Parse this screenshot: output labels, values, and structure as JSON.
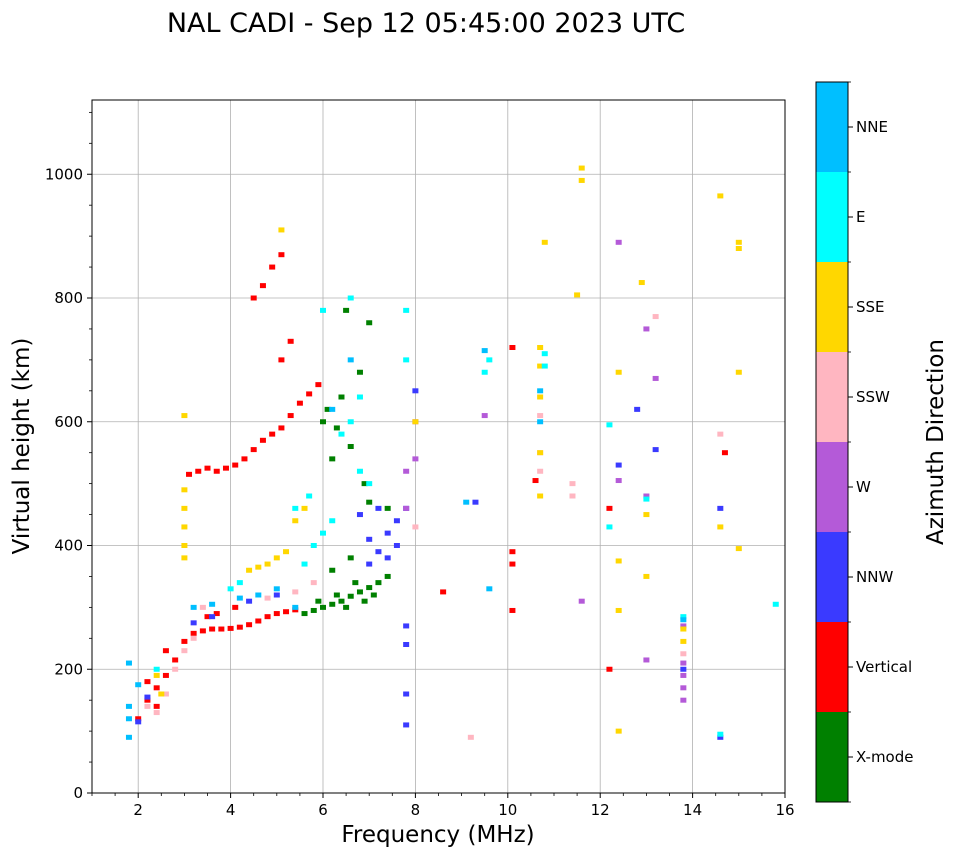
{
  "chart_data": {
    "type": "scatter",
    "title": "NAL CADI - Sep 12 05:45:00 2023 UTC",
    "xlabel": "Frequency (MHz)",
    "ylabel": "Virtual height (km)",
    "xlim": [
      1,
      16
    ],
    "ylim": [
      0,
      1120
    ],
    "xticks": [
      2,
      4,
      6,
      8,
      10,
      12,
      14,
      16
    ],
    "yticks": [
      0,
      200,
      400,
      600,
      800,
      1000
    ],
    "grid": true,
    "colorbar": {
      "label": "Azimuth Direction",
      "categories": [
        {
          "name": "X-mode",
          "color": "#008000"
        },
        {
          "name": "Vertical",
          "color": "#ff0000"
        },
        {
          "name": "NNW",
          "color": "#3a3aff"
        },
        {
          "name": "W",
          "color": "#b45ad8"
        },
        {
          "name": "SSW",
          "color": "#ffb6c1"
        },
        {
          "name": "SSE",
          "color": "#ffd700"
        },
        {
          "name": "E",
          "color": "#00ffff"
        },
        {
          "name": "NNE",
          "color": "#00bfff"
        }
      ]
    },
    "series": [
      {
        "name": "X-mode",
        "points": [
          [
            5.6,
            290
          ],
          [
            5.8,
            295
          ],
          [
            6.0,
            300
          ],
          [
            6.2,
            305
          ],
          [
            6.4,
            310
          ],
          [
            6.6,
            318
          ],
          [
            6.8,
            325
          ],
          [
            7.0,
            332
          ],
          [
            7.2,
            340
          ],
          [
            7.4,
            350
          ],
          [
            6.5,
            300
          ],
          [
            6.9,
            310
          ],
          [
            7.1,
            320
          ],
          [
            6.3,
            320
          ],
          [
            6.7,
            340
          ],
          [
            6.2,
            540
          ],
          [
            6.6,
            560
          ],
          [
            7.0,
            470
          ],
          [
            7.4,
            460
          ],
          [
            6.0,
            600
          ],
          [
            6.4,
            640
          ],
          [
            6.8,
            680
          ],
          [
            7.0,
            760
          ],
          [
            6.5,
            780
          ],
          [
            6.1,
            620
          ],
          [
            6.3,
            590
          ],
          [
            6.9,
            500
          ],
          [
            6.2,
            360
          ],
          [
            5.9,
            310
          ],
          [
            6.6,
            380
          ]
        ]
      },
      {
        "name": "Vertical",
        "points": [
          [
            2.0,
            120
          ],
          [
            2.2,
            150
          ],
          [
            2.4,
            170
          ],
          [
            2.6,
            190
          ],
          [
            2.8,
            215
          ],
          [
            3.0,
            245
          ],
          [
            3.2,
            258
          ],
          [
            3.4,
            262
          ],
          [
            3.6,
            265
          ],
          [
            3.8,
            265
          ],
          [
            4.0,
            266
          ],
          [
            4.2,
            268
          ],
          [
            4.4,
            272
          ],
          [
            4.6,
            278
          ],
          [
            4.8,
            285
          ],
          [
            5.0,
            290
          ],
          [
            5.2,
            293
          ],
          [
            5.4,
            296
          ],
          [
            3.1,
            515
          ],
          [
            3.3,
            520
          ],
          [
            3.5,
            525
          ],
          [
            3.7,
            520
          ],
          [
            3.9,
            525
          ],
          [
            4.1,
            530
          ],
          [
            4.3,
            540
          ],
          [
            4.5,
            555
          ],
          [
            4.7,
            570
          ],
          [
            4.9,
            580
          ],
          [
            5.1,
            590
          ],
          [
            5.3,
            610
          ],
          [
            5.5,
            630
          ],
          [
            5.7,
            645
          ],
          [
            5.9,
            660
          ],
          [
            5.1,
            700
          ],
          [
            5.3,
            730
          ],
          [
            4.5,
            800
          ],
          [
            4.7,
            820
          ],
          [
            4.9,
            850
          ],
          [
            5.1,
            870
          ],
          [
            2.4,
            140
          ],
          [
            2.2,
            180
          ],
          [
            2.6,
            230
          ],
          [
            3.5,
            285
          ],
          [
            3.7,
            290
          ],
          [
            4.1,
            300
          ],
          [
            10.1,
            370
          ],
          [
            10.1,
            390
          ],
          [
            10.1,
            295
          ],
          [
            10.1,
            720
          ],
          [
            10.6,
            505
          ],
          [
            12.2,
            200
          ],
          [
            12.2,
            460
          ],
          [
            14.7,
            550
          ],
          [
            8.6,
            325
          ]
        ]
      },
      {
        "name": "NNW",
        "points": [
          [
            2.0,
            115
          ],
          [
            2.2,
            155
          ],
          [
            3.2,
            275
          ],
          [
            3.6,
            285
          ],
          [
            4.4,
            310
          ],
          [
            5.0,
            320
          ],
          [
            7.0,
            370
          ],
          [
            7.2,
            390
          ],
          [
            7.4,
            420
          ],
          [
            7.6,
            440
          ],
          [
            7.8,
            460
          ],
          [
            7.6,
            400
          ],
          [
            7.4,
            380
          ],
          [
            7.8,
            270
          ],
          [
            7.8,
            240
          ],
          [
            7.8,
            160
          ],
          [
            7.8,
            110
          ],
          [
            7.2,
            460
          ],
          [
            13.8,
            200
          ],
          [
            14.6,
            460
          ],
          [
            14.6,
            90
          ],
          [
            12.4,
            530
          ],
          [
            12.8,
            620
          ],
          [
            13.2,
            555
          ],
          [
            8.0,
            650
          ],
          [
            9.3,
            470
          ],
          [
            7.0,
            410
          ],
          [
            6.8,
            450
          ]
        ]
      },
      {
        "name": "W",
        "points": [
          [
            13.8,
            150
          ],
          [
            13.8,
            170
          ],
          [
            13.8,
            190
          ],
          [
            13.8,
            210
          ],
          [
            13.8,
            270
          ],
          [
            13.0,
            480
          ],
          [
            12.4,
            505
          ],
          [
            12.4,
            890
          ],
          [
            13.0,
            750
          ],
          [
            13.2,
            670
          ],
          [
            7.8,
            520
          ],
          [
            7.8,
            460
          ],
          [
            9.5,
            610
          ],
          [
            11.6,
            310
          ],
          [
            13.0,
            215
          ],
          [
            8.0,
            600
          ],
          [
            8.0,
            540
          ]
        ]
      },
      {
        "name": "SSW",
        "points": [
          [
            2.4,
            130
          ],
          [
            2.6,
            160
          ],
          [
            2.8,
            200
          ],
          [
            2.2,
            140
          ],
          [
            3.0,
            230
          ],
          [
            3.2,
            250
          ],
          [
            3.4,
            300
          ],
          [
            4.8,
            315
          ],
          [
            5.4,
            325
          ],
          [
            5.8,
            340
          ],
          [
            11.4,
            500
          ],
          [
            11.4,
            480
          ],
          [
            10.7,
            520
          ],
          [
            10.7,
            550
          ],
          [
            10.7,
            610
          ],
          [
            13.8,
            225
          ],
          [
            14.6,
            580
          ],
          [
            13.2,
            770
          ],
          [
            9.2,
            90
          ],
          [
            8.0,
            430
          ]
        ]
      },
      {
        "name": "SSE",
        "points": [
          [
            3.0,
            610
          ],
          [
            3.0,
            490
          ],
          [
            3.0,
            460
          ],
          [
            3.0,
            430
          ],
          [
            3.0,
            400
          ],
          [
            3.0,
            380
          ],
          [
            2.5,
            160
          ],
          [
            2.4,
            190
          ],
          [
            4.4,
            360
          ],
          [
            4.6,
            365
          ],
          [
            4.8,
            370
          ],
          [
            5.0,
            380
          ],
          [
            5.2,
            390
          ],
          [
            5.4,
            440
          ],
          [
            5.6,
            460
          ],
          [
            5.1,
            910
          ],
          [
            10.7,
            480
          ],
          [
            10.7,
            550
          ],
          [
            10.7,
            640
          ],
          [
            10.7,
            690
          ],
          [
            10.7,
            720
          ],
          [
            10.8,
            890
          ],
          [
            11.5,
            805
          ],
          [
            11.6,
            990
          ],
          [
            11.6,
            1010
          ],
          [
            12.4,
            100
          ],
          [
            12.4,
            295
          ],
          [
            12.4,
            375
          ],
          [
            12.4,
            680
          ],
          [
            13.0,
            350
          ],
          [
            13.0,
            450
          ],
          [
            12.9,
            825
          ],
          [
            13.8,
            245
          ],
          [
            13.8,
            265
          ],
          [
            14.6,
            965
          ],
          [
            14.6,
            430
          ],
          [
            15.0,
            395
          ],
          [
            15.0,
            680
          ],
          [
            15.0,
            880
          ],
          [
            15.0,
            890
          ],
          [
            8.0,
            600
          ]
        ]
      },
      {
        "name": "E",
        "points": [
          [
            5.6,
            370
          ],
          [
            5.8,
            400
          ],
          [
            6.0,
            420
          ],
          [
            6.2,
            440
          ],
          [
            5.4,
            460
          ],
          [
            5.7,
            480
          ],
          [
            6.8,
            520
          ],
          [
            7.0,
            500
          ],
          [
            6.4,
            580
          ],
          [
            6.6,
            600
          ],
          [
            6.8,
            640
          ],
          [
            6.0,
            780
          ],
          [
            6.6,
            800
          ],
          [
            7.8,
            700
          ],
          [
            7.8,
            780
          ],
          [
            9.5,
            680
          ],
          [
            9.6,
            700
          ],
          [
            10.8,
            690
          ],
          [
            10.8,
            710
          ],
          [
            12.2,
            595
          ],
          [
            12.2,
            430
          ],
          [
            13.0,
            475
          ],
          [
            13.8,
            285
          ],
          [
            14.6,
            95
          ],
          [
            15.8,
            305
          ],
          [
            2.4,
            200
          ],
          [
            4.0,
            330
          ],
          [
            4.2,
            340
          ]
        ]
      },
      {
        "name": "NNE",
        "points": [
          [
            1.8,
            90
          ],
          [
            1.8,
            120
          ],
          [
            1.8,
            140
          ],
          [
            1.8,
            210
          ],
          [
            2.0,
            175
          ],
          [
            3.2,
            300
          ],
          [
            3.6,
            305
          ],
          [
            4.2,
            315
          ],
          [
            4.6,
            320
          ],
          [
            5.0,
            330
          ],
          [
            5.4,
            300
          ],
          [
            6.6,
            700
          ],
          [
            6.2,
            620
          ],
          [
            9.5,
            715
          ],
          [
            9.1,
            470
          ],
          [
            10.7,
            600
          ],
          [
            10.7,
            650
          ],
          [
            13.8,
            280
          ],
          [
            9.6,
            330
          ]
        ]
      }
    ]
  }
}
